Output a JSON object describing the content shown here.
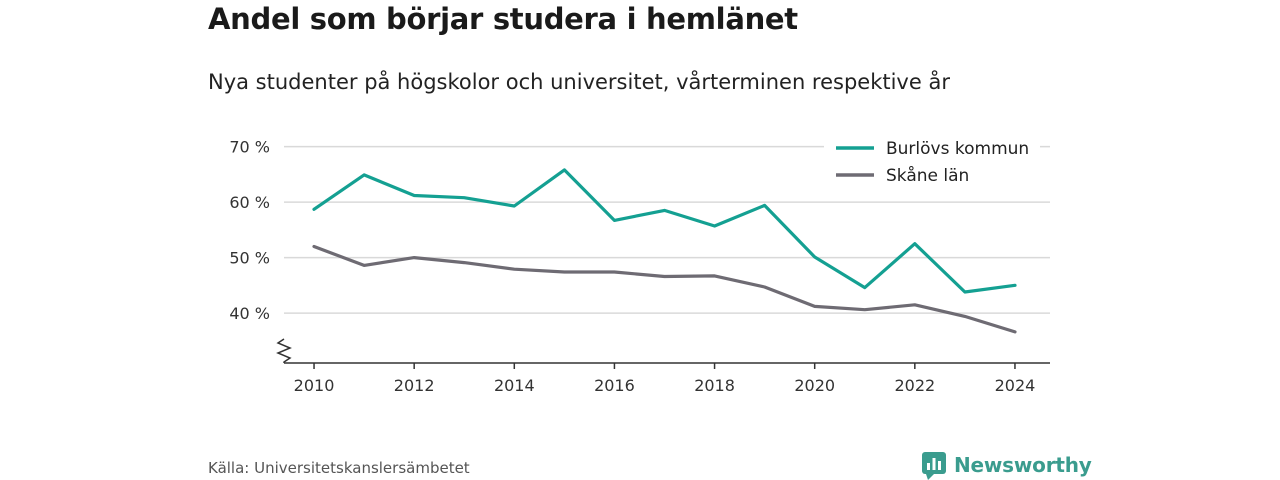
{
  "header": {
    "title": "Andel som börjar studera i hemlänet",
    "subtitle": "Nya studenter på högskolor och universitet, vårterminen respektive år"
  },
  "footer": {
    "source": "Källa: Universitetskanslersämbetet",
    "brand": "Newsworthy"
  },
  "colors": {
    "burlov": "#14a092",
    "skane": "#6e6b73",
    "grid": "#d9d9d9",
    "axis": "#333333",
    "brand": "#3a9c8e"
  },
  "chart_data": {
    "type": "line",
    "x": [
      2010,
      2011,
      2012,
      2013,
      2014,
      2015,
      2016,
      2017,
      2018,
      2019,
      2020,
      2021,
      2022,
      2023,
      2024
    ],
    "x_ticks": [
      {
        "value": 2010,
        "label": "2010"
      },
      {
        "value": 2012,
        "label": "2012"
      },
      {
        "value": 2014,
        "label": "2014"
      },
      {
        "value": 2016,
        "label": "2016"
      },
      {
        "value": 2018,
        "label": "2018"
      },
      {
        "value": 2020,
        "label": "2020"
      },
      {
        "value": 2022,
        "label": "2022"
      },
      {
        "value": 2024,
        "label": "2024"
      }
    ],
    "y_ticks": [
      {
        "value": 40,
        "label": "40 %"
      },
      {
        "value": 50,
        "label": "50 %"
      },
      {
        "value": 60,
        "label": "60 %"
      },
      {
        "value": 70,
        "label": "70 %"
      }
    ],
    "ylim": [
      31,
      73
    ],
    "xlim": [
      2009.4,
      2024.7
    ],
    "y_axis_break": true,
    "grid": true,
    "legend_position": "top-right",
    "series": [
      {
        "name": "Burlövs kommun",
        "color": "#14a092",
        "values": [
          58.7,
          64.9,
          61.2,
          60.8,
          59.3,
          65.8,
          56.7,
          58.5,
          55.7,
          59.4,
          50.1,
          44.6,
          52.5,
          43.8,
          45.0
        ]
      },
      {
        "name": "Skåne län",
        "color": "#6e6b73",
        "values": [
          52.0,
          48.6,
          50.0,
          49.1,
          47.9,
          47.4,
          47.4,
          46.6,
          46.7,
          44.7,
          41.2,
          40.6,
          41.5,
          39.4,
          36.6
        ]
      }
    ]
  }
}
